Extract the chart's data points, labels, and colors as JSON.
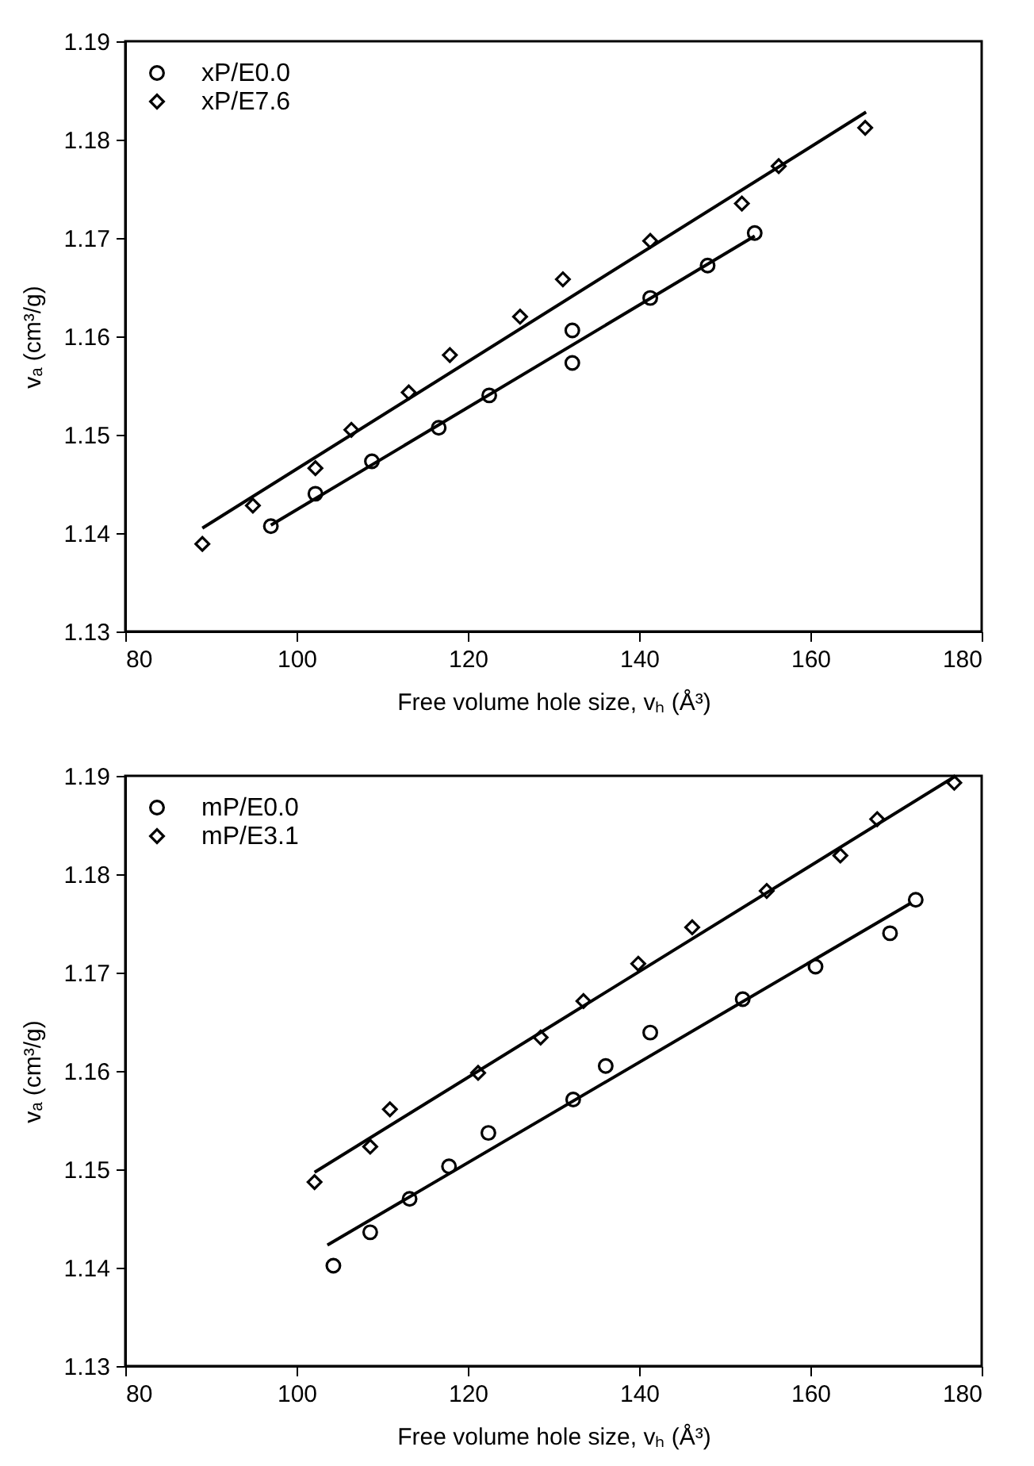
{
  "chart_data": [
    {
      "type": "scatter",
      "xlabel": "Free volume hole size, vₕ (Å³)",
      "ylabel": "vₐ (cm³/g)",
      "xlim": [
        80,
        180
      ],
      "ylim": [
        1.13,
        1.19
      ],
      "xticks": [
        80,
        100,
        120,
        140,
        160,
        180
      ],
      "yticks": [
        1.13,
        1.14,
        1.15,
        1.16,
        1.17,
        1.18,
        1.19
      ],
      "legend": "top left",
      "grid": false,
      "series": [
        {
          "name": "xP/E0.0",
          "marker": "circle",
          "color": "#000000",
          "x": [
            97.0,
            102.2,
            108.8,
            116.6,
            122.5,
            132.2,
            132.2,
            141.3,
            148.0,
            153.5
          ],
          "values": [
            1.1407,
            1.144,
            1.1473,
            1.1507,
            1.154,
            1.1606,
            1.1573,
            1.1639,
            1.1672,
            1.1705
          ]
        },
        {
          "name": "xP/E7.6",
          "marker": "diamond",
          "color": "#000000",
          "x": [
            89.0,
            94.9,
            102.2,
            106.4,
            113.1,
            117.9,
            126.1,
            131.1,
            141.3,
            152.0,
            156.3,
            166.4
          ],
          "values": [
            1.1389,
            1.1428,
            1.1466,
            1.1505,
            1.1543,
            1.1581,
            1.162,
            1.1658,
            1.1697,
            1.1735,
            1.1773,
            1.1812
          ]
        },
        {
          "type": "line",
          "marker": "none",
          "color": "#000000",
          "x": [
            97.0,
            153.5
          ],
          "values": [
            1.1408,
            1.1702
          ]
        },
        {
          "type": "line",
          "marker": "none",
          "color": "#000000",
          "x": [
            89.0,
            166.5
          ],
          "values": [
            1.1405,
            1.1828
          ]
        }
      ]
    },
    {
      "type": "scatter",
      "xlabel": "Free volume hole size, vₕ (Å³)",
      "ylabel": "vₐ (cm³/g)",
      "xlim": [
        80,
        180
      ],
      "ylim": [
        1.13,
        1.19
      ],
      "xticks": [
        80,
        100,
        120,
        140,
        160,
        180
      ],
      "yticks": [
        1.13,
        1.14,
        1.15,
        1.16,
        1.17,
        1.18,
        1.19
      ],
      "legend": "top left",
      "grid": false,
      "series": [
        {
          "name": "mP/E0.0",
          "marker": "circle",
          "color": "#000000",
          "x": [
            104.3,
            108.6,
            113.2,
            117.8,
            122.4,
            132.3,
            136.1,
            141.3,
            152.1,
            160.6,
            169.3,
            172.3
          ],
          "values": [
            1.1402,
            1.1436,
            1.147,
            1.1503,
            1.1537,
            1.1571,
            1.1605,
            1.1639,
            1.1673,
            1.1706,
            1.174,
            1.1774
          ]
        },
        {
          "name": "mP/E3.1",
          "marker": "diamond",
          "color": "#000000",
          "x": [
            102.1,
            108.6,
            110.9,
            121.2,
            128.5,
            133.5,
            139.9,
            146.2,
            154.9,
            163.5,
            167.8,
            176.8
          ],
          "values": [
            1.1487,
            1.1523,
            1.1561,
            1.1598,
            1.1634,
            1.1671,
            1.1709,
            1.1746,
            1.1783,
            1.1819,
            1.1856,
            1.1893
          ]
        },
        {
          "type": "line",
          "marker": "none",
          "color": "#000000",
          "x": [
            103.6,
            171.8
          ],
          "values": [
            1.1423,
            1.1771
          ]
        },
        {
          "type": "line",
          "marker": "none",
          "color": "#000000",
          "x": [
            102.1,
            176.8
          ],
          "values": [
            1.1497,
            1.1899
          ]
        }
      ]
    }
  ]
}
